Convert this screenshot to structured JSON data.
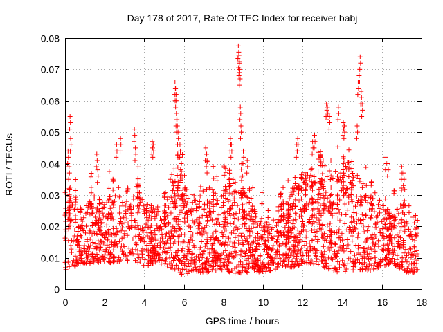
{
  "chart_data": {
    "type": "scatter",
    "title": "Day 178 of 2017, Rate Of TEC Index for receiver babj",
    "xlabel": "GPS time / hours",
    "ylabel": "ROTI / TECUs",
    "xlim": [
      0,
      18
    ],
    "ylim": [
      0,
      0.08
    ],
    "x_ticks": [
      0,
      2,
      4,
      6,
      8,
      10,
      12,
      14,
      16,
      18
    ],
    "x_tick_labels": [
      "0",
      "2",
      "4",
      "6",
      "8",
      "10",
      "12",
      "14",
      "16",
      "18"
    ],
    "y_ticks": [
      0,
      0.01,
      0.02,
      0.03,
      0.04,
      0.05,
      0.06,
      0.07,
      0.08
    ],
    "y_tick_labels": [
      "0",
      "0.01",
      "0.02",
      "0.03",
      "0.04",
      "0.05",
      "0.06",
      "0.07",
      "0.08"
    ],
    "grid": true,
    "marker": "+",
    "marker_color": "#ff0000",
    "series": [
      {
        "name": "ROTI",
        "band": [
          [
            0.0,
            0.006,
            0.034
          ],
          [
            0.5,
            0.007,
            0.03
          ],
          [
            1.0,
            0.008,
            0.026
          ],
          [
            1.5,
            0.008,
            0.03
          ],
          [
            2.0,
            0.009,
            0.028
          ],
          [
            2.5,
            0.008,
            0.033
          ],
          [
            3.0,
            0.009,
            0.032
          ],
          [
            3.5,
            0.009,
            0.034
          ],
          [
            4.0,
            0.007,
            0.028
          ],
          [
            4.5,
            0.008,
            0.026
          ],
          [
            5.0,
            0.008,
            0.03
          ],
          [
            5.5,
            0.006,
            0.04
          ],
          [
            6.0,
            0.004,
            0.035
          ],
          [
            6.5,
            0.006,
            0.03
          ],
          [
            7.0,
            0.005,
            0.034
          ],
          [
            7.5,
            0.006,
            0.032
          ],
          [
            8.0,
            0.006,
            0.034
          ],
          [
            8.5,
            0.005,
            0.036
          ],
          [
            9.0,
            0.005,
            0.032
          ],
          [
            9.5,
            0.006,
            0.026
          ],
          [
            10.0,
            0.005,
            0.022
          ],
          [
            10.5,
            0.006,
            0.022
          ],
          [
            11.0,
            0.007,
            0.026
          ],
          [
            11.5,
            0.007,
            0.034
          ],
          [
            12.0,
            0.008,
            0.038
          ],
          [
            12.5,
            0.008,
            0.04
          ],
          [
            13.0,
            0.007,
            0.042
          ],
          [
            13.5,
            0.006,
            0.036
          ],
          [
            14.0,
            0.005,
            0.042
          ],
          [
            14.5,
            0.006,
            0.04
          ],
          [
            15.0,
            0.006,
            0.034
          ],
          [
            15.5,
            0.006,
            0.032
          ],
          [
            16.0,
            0.007,
            0.028
          ],
          [
            16.5,
            0.008,
            0.024
          ],
          [
            17.0,
            0.006,
            0.028
          ],
          [
            17.5,
            0.005,
            0.026
          ],
          [
            17.8,
            0.005,
            0.024
          ]
        ],
        "spikes": [
          [
            0.15,
            0.044
          ],
          [
            0.2,
            0.039
          ],
          [
            0.25,
            0.055
          ],
          [
            0.28,
            0.048
          ],
          [
            1.6,
            0.043
          ],
          [
            1.65,
            0.038
          ],
          [
            2.6,
            0.046
          ],
          [
            2.8,
            0.048
          ],
          [
            3.5,
            0.051
          ],
          [
            3.55,
            0.045
          ],
          [
            4.4,
            0.047
          ],
          [
            4.45,
            0.046
          ],
          [
            5.55,
            0.066
          ],
          [
            5.58,
            0.064
          ],
          [
            5.6,
            0.062
          ],
          [
            5.62,
            0.056
          ],
          [
            5.65,
            0.054
          ],
          [
            5.7,
            0.05
          ],
          [
            5.8,
            0.046
          ],
          [
            5.85,
            0.042
          ],
          [
            7.1,
            0.045
          ],
          [
            7.15,
            0.043
          ],
          [
            8.35,
            0.048
          ],
          [
            8.4,
            0.046
          ],
          [
            8.75,
            0.0775
          ],
          [
            8.78,
            0.0745
          ],
          [
            8.8,
            0.072
          ],
          [
            8.82,
            0.069
          ],
          [
            8.85,
            0.058
          ],
          [
            8.88,
            0.052
          ],
          [
            9.0,
            0.044
          ],
          [
            9.2,
            0.041
          ],
          [
            11.7,
            0.046
          ],
          [
            11.75,
            0.048
          ],
          [
            12.5,
            0.047
          ],
          [
            12.6,
            0.049
          ],
          [
            13.2,
            0.059
          ],
          [
            13.25,
            0.058
          ],
          [
            13.35,
            0.055
          ],
          [
            13.8,
            0.058
          ],
          [
            14.05,
            0.053
          ],
          [
            14.1,
            0.052
          ],
          [
            14.75,
            0.052
          ],
          [
            14.8,
            0.066
          ],
          [
            14.85,
            0.068
          ],
          [
            14.9,
            0.074
          ],
          [
            14.95,
            0.063
          ],
          [
            15.0,
            0.059
          ],
          [
            16.2,
            0.042
          ],
          [
            16.3,
            0.04
          ],
          [
            17.0,
            0.039
          ],
          [
            17.1,
            0.037
          ]
        ]
      }
    ]
  }
}
